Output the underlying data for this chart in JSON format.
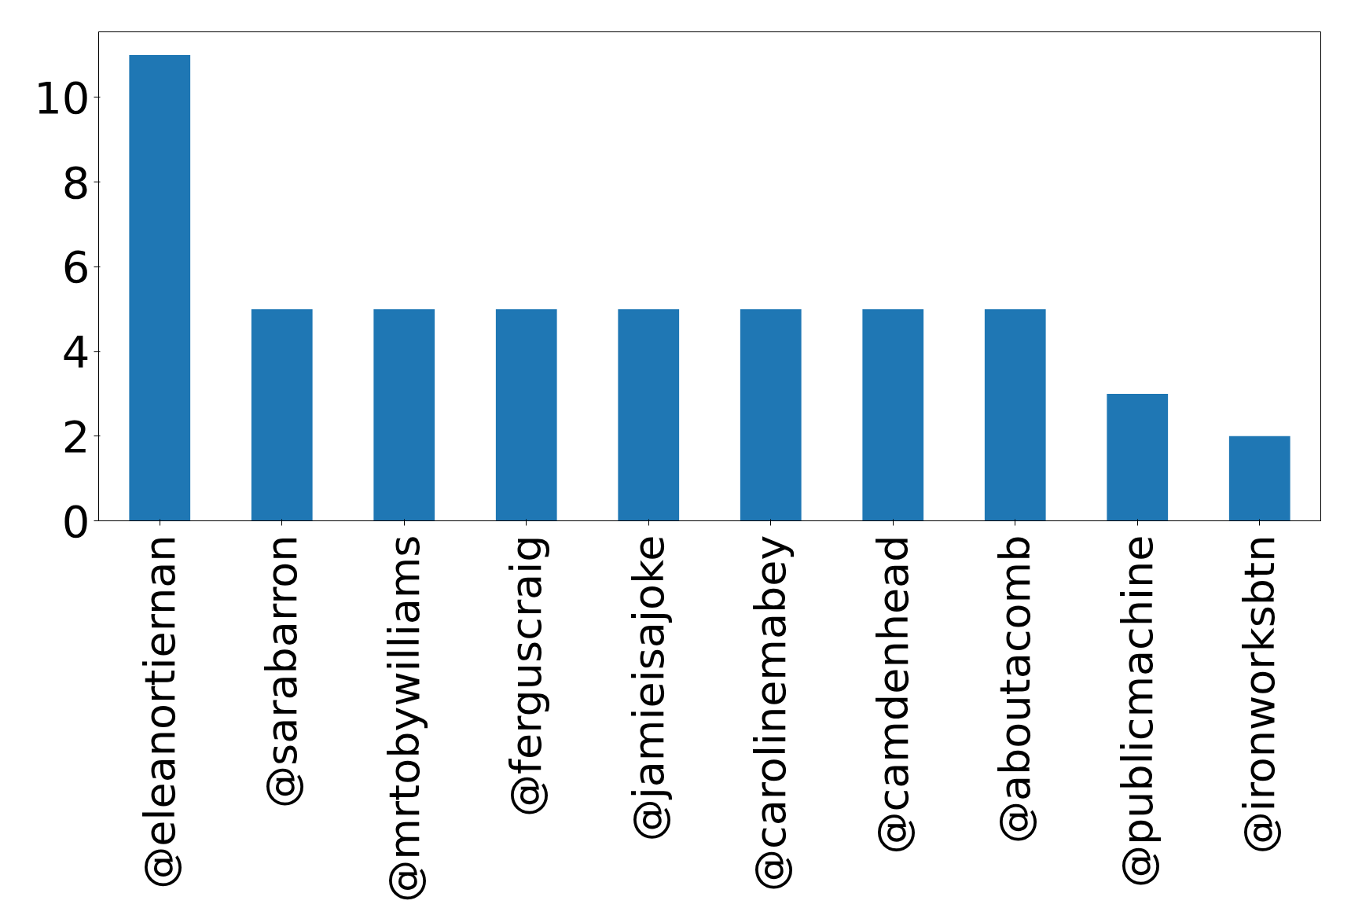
{
  "chart_data": {
    "type": "bar",
    "categories": [
      "@eleanortiernan",
      "@sarabarron",
      "@mrtobywilliams",
      "@ferguscraig",
      "@jamieisajoke",
      "@carolinemabey",
      "@camdenhead",
      "@aboutacomb",
      "@publicmachine",
      "@ironworksbtn"
    ],
    "values": [
      11,
      5,
      5,
      5,
      5,
      5,
      5,
      5,
      3,
      2
    ],
    "color": "#1f77b4",
    "ylim": [
      0,
      11.55
    ],
    "yticks": [
      0,
      2,
      4,
      6,
      8,
      10
    ],
    "grid": false
  }
}
